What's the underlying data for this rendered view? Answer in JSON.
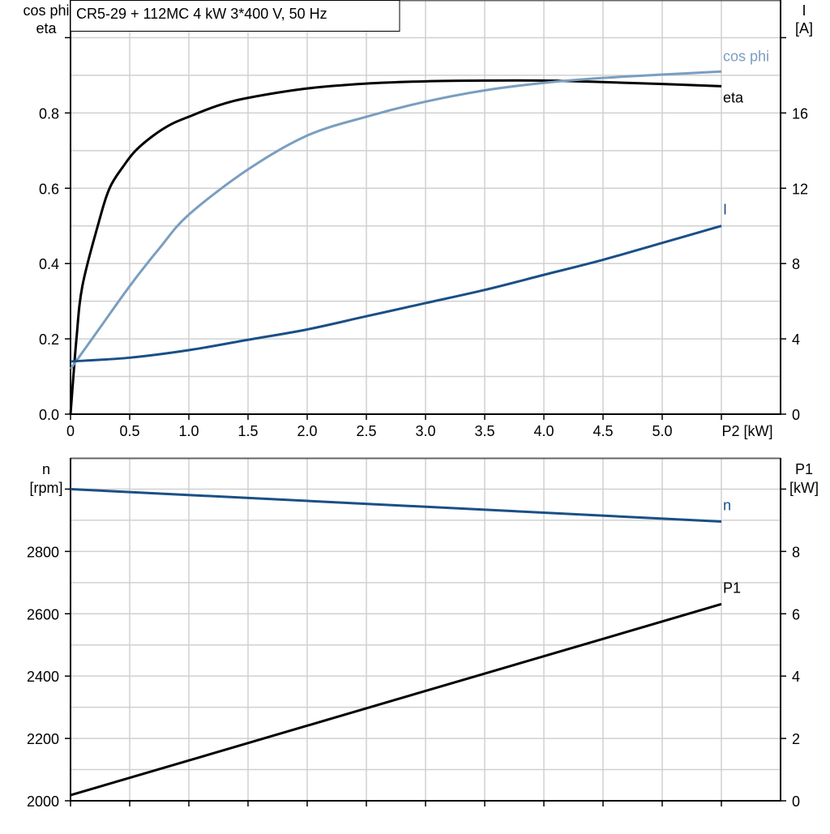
{
  "title": "CR5-29 + 112MC   4 kW   3*400 V, 50 Hz",
  "chart_data": [
    {
      "type": "line",
      "xlabel": "P2 [kW]",
      "x_tick_labels": [
        "0",
        "0.5",
        "1.0",
        "1.5",
        "2.0",
        "2.5",
        "3.0",
        "3.5",
        "4.0",
        "4.5",
        "5.0"
      ],
      "xlim": [
        0,
        6.0
      ],
      "grid": true,
      "left_axis": {
        "label_line1": "cos phi",
        "label_line2": "eta",
        "ylim": [
          0,
          1.1
        ],
        "tick_labels": [
          "0.0",
          "0.2",
          "0.4",
          "0.6",
          "0.8"
        ]
      },
      "right_axis": {
        "label_line1": "I",
        "label_line2": "[A]",
        "ylim": [
          0,
          22
        ],
        "tick_labels": [
          "0",
          "4",
          "8",
          "12",
          "16"
        ]
      },
      "series": [
        {
          "name": "eta",
          "axis": "left",
          "color": "#000000",
          "x": [
            0,
            0.05,
            0.1,
            0.23,
            0.33,
            0.45,
            0.55,
            0.7,
            0.85,
            1.0,
            1.25,
            1.5,
            2.0,
            2.5,
            3.0,
            3.5,
            4.0,
            4.5,
            5.0,
            5.5
          ],
          "y": [
            0,
            0.2,
            0.34,
            0.5,
            0.6,
            0.66,
            0.7,
            0.74,
            0.77,
            0.79,
            0.82,
            0.84,
            0.865,
            0.878,
            0.884,
            0.886,
            0.886,
            0.882,
            0.877,
            0.871
          ]
        },
        {
          "name": "cos phi",
          "axis": "left",
          "color": "#7a9ebf",
          "x": [
            0,
            0.25,
            0.5,
            0.75,
            1.0,
            1.5,
            2.0,
            2.5,
            3.0,
            3.5,
            4.0,
            4.5,
            5.0,
            5.5
          ],
          "y": [
            0.12,
            0.23,
            0.34,
            0.44,
            0.53,
            0.65,
            0.74,
            0.79,
            0.83,
            0.86,
            0.88,
            0.893,
            0.902,
            0.91
          ]
        },
        {
          "name": "I",
          "axis": "right",
          "color": "#1a4f86",
          "x": [
            0,
            0.5,
            1.0,
            1.5,
            2.0,
            2.5,
            3.0,
            3.5,
            4.0,
            4.5,
            5.0,
            5.5
          ],
          "y": [
            2.8,
            3.0,
            3.4,
            3.95,
            4.5,
            5.2,
            5.9,
            6.6,
            7.4,
            8.2,
            9.1,
            10.0
          ]
        }
      ]
    },
    {
      "type": "line",
      "xlim": [
        0,
        6.0
      ],
      "grid": true,
      "left_axis": {
        "label_line1": "n",
        "label_line2": "[rpm]",
        "ylim": [
          2000,
          3100
        ],
        "tick_labels": [
          "2000",
          "2200",
          "2400",
          "2600",
          "2800"
        ]
      },
      "right_axis": {
        "label_line1": "P1",
        "label_line2": "[kW]",
        "ylim": [
          0,
          11
        ],
        "tick_labels": [
          "0",
          "2",
          "4",
          "6",
          "8"
        ]
      },
      "series": [
        {
          "name": "n",
          "axis": "left",
          "color": "#1a4f86",
          "x": [
            0,
            5.5
          ],
          "y": [
            3000,
            2896
          ]
        },
        {
          "name": "P1",
          "axis": "right",
          "color": "#000000",
          "x": [
            0,
            5.5
          ],
          "y": [
            0.18,
            6.31
          ]
        }
      ]
    }
  ]
}
